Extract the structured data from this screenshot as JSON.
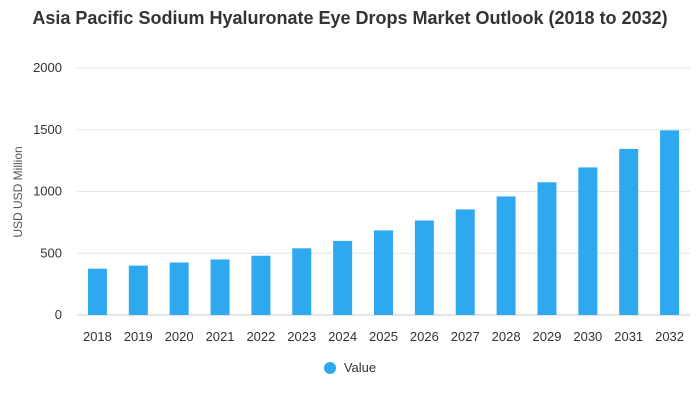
{
  "chart_data": {
    "type": "bar",
    "title": "Asia Pacific Sodium Hyaluronate Eye Drops Market Outlook (2018 to 2032)",
    "xlabel": "",
    "ylabel": "USD USD Million",
    "ylim": [
      0,
      2000
    ],
    "yticks": [
      0,
      500,
      1000,
      1500,
      2000
    ],
    "grid": true,
    "legend_position": "bottom",
    "categories": [
      "2018",
      "2019",
      "2020",
      "2021",
      "2022",
      "2023",
      "2024",
      "2025",
      "2026",
      "2027",
      "2028",
      "2029",
      "2030",
      "2031",
      "2032"
    ],
    "series": [
      {
        "name": "Value",
        "color": "#2ea9f0",
        "values": [
          375,
          400,
          425,
          450,
          480,
          540,
          600,
          685,
          765,
          855,
          960,
          1075,
          1195,
          1345,
          1495
        ]
      }
    ]
  }
}
